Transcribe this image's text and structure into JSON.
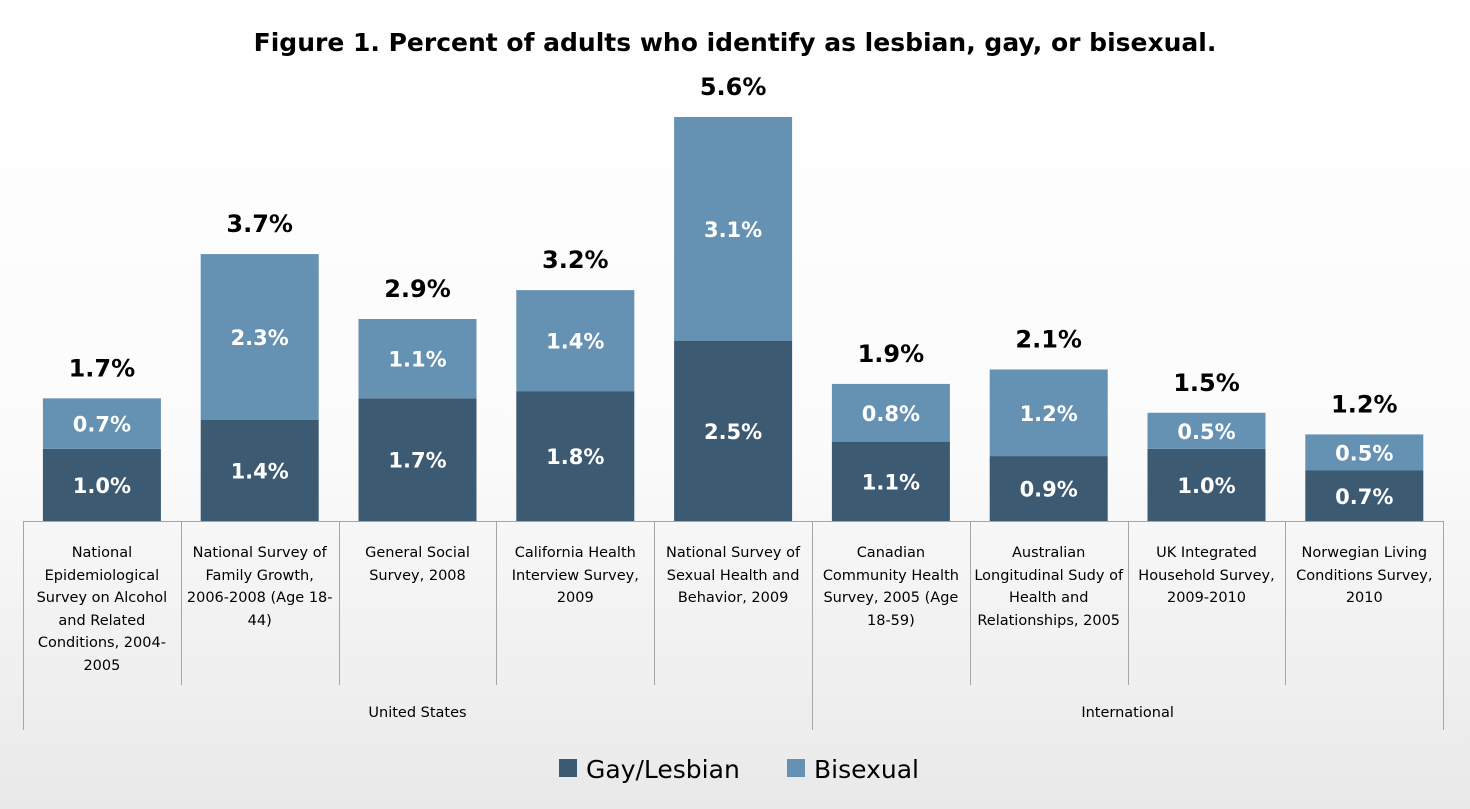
{
  "chart_data": {
    "type": "bar",
    "stacked": true,
    "title": "Figure 1. Percent of adults who identify as lesbian, gay, or bisexual.",
    "categories": [
      "National Epidemiological Survey on Alcohol and Related Conditions, 2004-2005",
      "National Survey of Family Growth, 2006-2008 (Age 18-44)",
      "General Social Survey, 2008",
      "California Health Interview Survey, 2009",
      "National Survey of Sexual Health and Behavior, 2009",
      "Canadian Community Health Survey, 2005 (Age 18-59)",
      "Australian Longitudinal Sudy of Health and Relationships, 2005",
      "UK Integrated Household Survey, 2009-2010",
      "Norwegian Living Conditions Survey, 2010"
    ],
    "category_lines": [
      [
        "National",
        "Epidemiological",
        "Survey on Alcohol",
        "and Related",
        "Conditions, 2004-",
        "2005"
      ],
      [
        "National Survey of",
        "Family Growth,",
        "2006-2008 (Age 18-",
        "44)"
      ],
      [
        "General Social",
        "Survey, 2008"
      ],
      [
        "California Health",
        "Interview Survey,",
        "2009"
      ],
      [
        "National Survey of",
        "Sexual Health and",
        "Behavior, 2009"
      ],
      [
        "Canadian",
        "Community Health",
        "Survey, 2005 (Age",
        "18-59)"
      ],
      [
        "Australian",
        "Longitudinal Sudy of",
        "Health and",
        "Relationships, 2005"
      ],
      [
        "UK Integrated",
        "Household Survey,",
        "2009-2010"
      ],
      [
        "Norwegian Living",
        "Conditions Survey,",
        "2010"
      ]
    ],
    "groups": [
      {
        "label": "United States",
        "start": 0,
        "end": 4
      },
      {
        "label": "International",
        "start": 5,
        "end": 8
      }
    ],
    "series": [
      {
        "name": "Gay/Lesbian",
        "color": "#3c5a72",
        "values": [
          1.0,
          1.4,
          1.7,
          1.8,
          2.5,
          1.1,
          0.9,
          1.0,
          0.7
        ],
        "labels": [
          "1.0%",
          "1.4%",
          "1.7%",
          "1.8%",
          "2.5%",
          "1.1%",
          "0.9%",
          "1.0%",
          "0.7%"
        ]
      },
      {
        "name": "Bisexual",
        "color": "#6591b3",
        "values": [
          0.7,
          2.3,
          1.1,
          1.4,
          3.1,
          0.8,
          1.2,
          0.5,
          0.5
        ],
        "labels": [
          "0.7%",
          "2.3%",
          "1.1%",
          "1.4%",
          "3.1%",
          "0.8%",
          "1.2%",
          "0.5%",
          "0.5%"
        ]
      }
    ],
    "totals": [
      1.7,
      3.7,
      2.9,
      3.2,
      5.6,
      1.9,
      2.1,
      1.5,
      1.2
    ],
    "total_labels": [
      "1.7%",
      "3.7%",
      "2.9%",
      "3.2%",
      "5.6%",
      "1.9%",
      "2.1%",
      "1.5%",
      "1.2%"
    ],
    "ylim": [
      0,
      5.6
    ],
    "yaxis_visible": false,
    "grid": false,
    "legend_position": "bottom"
  }
}
